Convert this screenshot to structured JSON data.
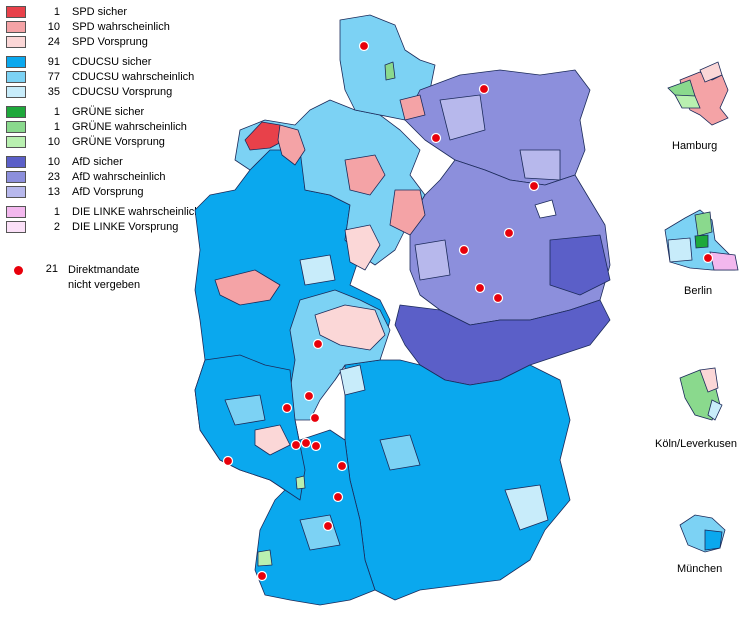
{
  "legend": {
    "entries": [
      {
        "count": "1",
        "label": "SPD sicher",
        "color": "#e8414a"
      },
      {
        "count": "10",
        "label": "SPD wahrscheinlich",
        "color": "#f4a3a6"
      },
      {
        "count": "24",
        "label": "SPD Vorsprung",
        "color": "#fbd7d7"
      },
      {
        "count": "91",
        "label": "CDUCSU sicher",
        "color": "#0aa8ee"
      },
      {
        "count": "77",
        "label": "CDUCSU wahrscheinlich",
        "color": "#7cd2f4"
      },
      {
        "count": "35",
        "label": "CDUCSU Vorsprung",
        "color": "#c8ecfa"
      },
      {
        "count": "1",
        "label": "GRÜNE sicher",
        "color": "#1ea83b"
      },
      {
        "count": "1",
        "label": "GRÜNE wahrscheinlich",
        "color": "#8ad98d"
      },
      {
        "count": "10",
        "label": "GRÜNE Vorsprung",
        "color": "#b9f0b0"
      },
      {
        "count": "10",
        "label": "AfD sicher",
        "color": "#5b5fc8"
      },
      {
        "count": "23",
        "label": "AfD wahrscheinlich",
        "color": "#8c8fdc"
      },
      {
        "count": "13",
        "label": "AfD Vorsprung",
        "color": "#b7b8ec"
      },
      {
        "count": "1",
        "label": "DIE LINKE wahrscheinlich",
        "color": "#f3b8ee"
      },
      {
        "count": "2",
        "label": "DIE LINKE Vorsprung",
        "color": "#fbe0f8"
      }
    ],
    "direktmandate": {
      "count": "21",
      "line1": "Direktmandate",
      "line2": "nicht vergeben",
      "color": "#e8000b"
    }
  },
  "insets": {
    "hamburg": "Hamburg",
    "berlin": "Berlin",
    "koeln": "Köln/Leverkusen",
    "muenchen": "München"
  }
}
